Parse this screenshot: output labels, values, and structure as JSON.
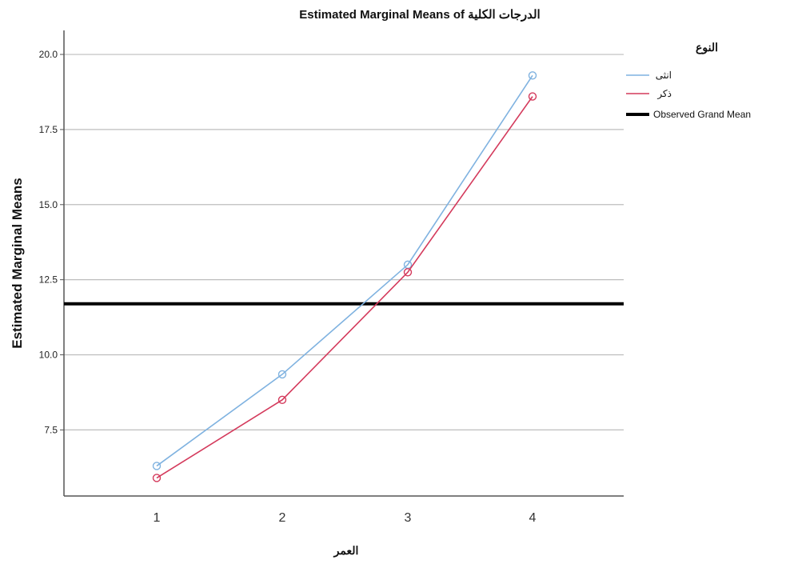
{
  "chart_data": {
    "type": "line",
    "title": "Estimated Marginal Means of الدرجات الكلية",
    "xlabel": "العمر",
    "ylabel": "Estimated Marginal Means",
    "categories": [
      "1",
      "2",
      "3",
      "4"
    ],
    "ylim": [
      5.3,
      20.8
    ],
    "yticks": [
      "7.5",
      "10.0",
      "12.5",
      "15.0",
      "17.5",
      "20.0"
    ],
    "grid": "horizontal",
    "legend_title": "النوع",
    "legend_position": "right",
    "series": [
      {
        "name": "انثى",
        "color": "#7fb2e0",
        "values": [
          6.3,
          9.35,
          13.0,
          19.3
        ]
      },
      {
        "name": "ذكر",
        "color": "#d43a5c",
        "values": [
          5.9,
          8.5,
          12.75,
          18.6
        ]
      }
    ],
    "reference_line": {
      "name": "Observed Grand Mean",
      "value": 11.7,
      "color": "#000000"
    }
  }
}
